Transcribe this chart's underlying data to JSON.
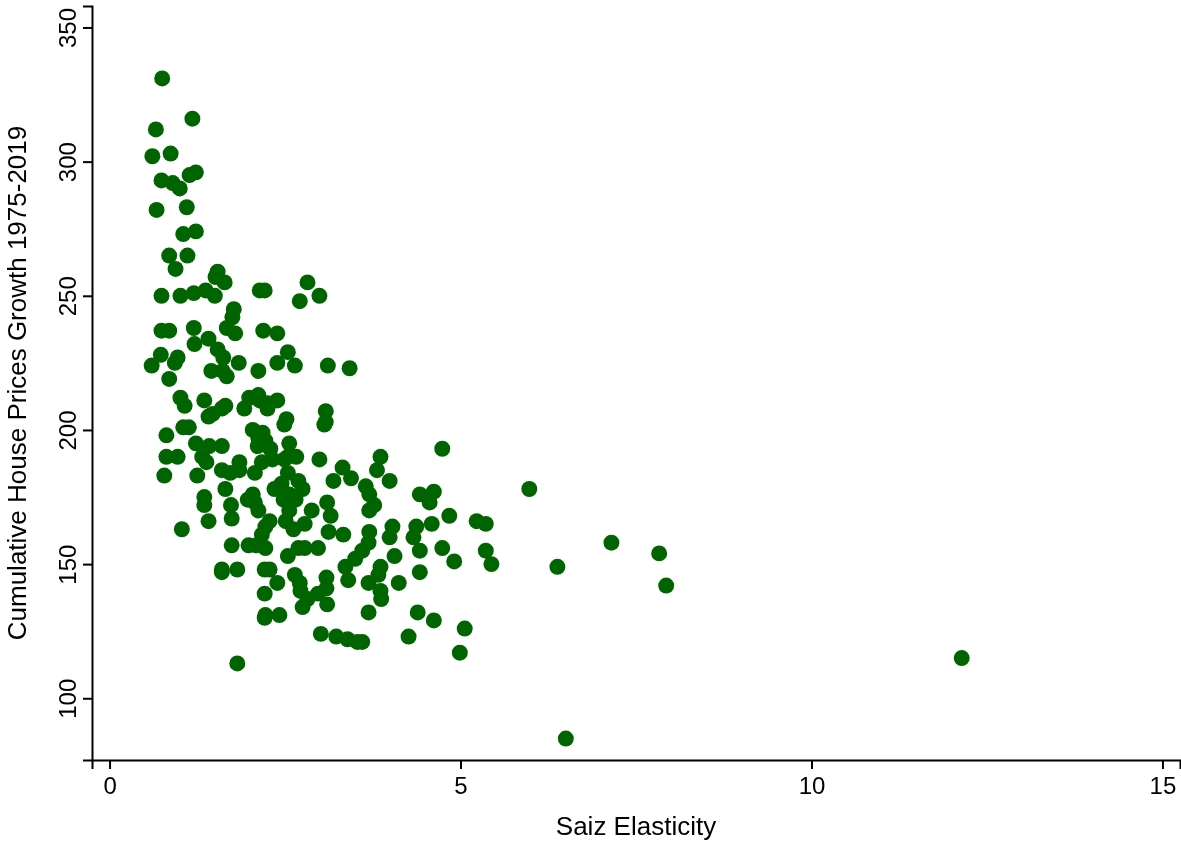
{
  "chart_data": {
    "type": "scatter",
    "xlabel": "Saiz Elasticity",
    "ylabel": "Cumulative House Prices Growth 1975-2019",
    "xlim": [
      -0.25,
      15.25
    ],
    "ylim": [
      77,
      358
    ],
    "xticks": [
      0,
      5,
      10,
      15
    ],
    "yticks": [
      100,
      150,
      200,
      250,
      300,
      350
    ],
    "grid": false,
    "marker": "circle",
    "series": [
      {
        "color": "#006400",
        "x": [
          0.75,
          0.66,
          1.18,
          0.61,
          0.87,
          0.74,
          0.9,
          1.0,
          1.14,
          1.23,
          0.67,
          1.1,
          1.05,
          1.23,
          0.85,
          1.11,
          0.94,
          0.74,
          1.01,
          1.2,
          1.37,
          1.54,
          1.51,
          1.64,
          1.5,
          0.74,
          0.85,
          1.2,
          1.41,
          1.67,
          1.75,
          1.77,
          0.73,
          0.97,
          1.21,
          1.54,
          1.62,
          0.6,
          0.93,
          1.45,
          1.61,
          1.84,
          0.85,
          1.67,
          2.14,
          2.21,
          1.79,
          2.19,
          2.39,
          2.12,
          2.39,
          2.64,
          2.54,
          2.71,
          2.82,
          2.99,
          3.11,
          3.42,
          2.39,
          2.52,
          3.08,
          3.06,
          3.08,
          1.01,
          1.07,
          1.13,
          1.05,
          0.81,
          0.97,
          0.81,
          0.78,
          1.03,
          1.23,
          1.25,
          1.32,
          1.38,
          1.42,
          1.35,
          1.41,
          1.47,
          1.6,
          1.65,
          1.35,
          1.35,
          1.41,
          1.6,
          1.6,
          1.6,
          1.6,
          1.82,
          1.82,
          1.65,
          1.72,
          1.73,
          1.74,
          1.85,
          1.85,
          1.74,
          1.98,
          2.09,
          1.92,
          1.99,
          2.12,
          2.14,
          2.25,
          2.25,
          2.04,
          2.12,
          2.18,
          2.22,
          2.11,
          2.29,
          2.32,
          2.17,
          2.07,
          2.04,
          1.97,
          2.07,
          2.12,
          2.22,
          2.22,
          2.21,
          2.28,
          2.21,
          2.22,
          2.21,
          2.42,
          2.39,
          2.45,
          2.54,
          2.49,
          2.56,
          2.54,
          2.49,
          2.66,
          2.69,
          2.75,
          2.65,
          2.56,
          2.51,
          2.62,
          2.78,
          2.54,
          2.69,
          2.78,
          2.64,
          2.71,
          2.72,
          2.75,
          2.82,
          2.97,
          2.88,
          2.97,
          2.99,
          3.01,
          3.23,
          3.09,
          3.09,
          3.1,
          3.12,
          3.15,
          3.1,
          3.19,
          3.32,
          3.44,
          3.33,
          3.36,
          3.4,
          3.39,
          3.53,
          3.6,
          3.5,
          3.6,
          3.69,
          3.7,
          3.65,
          3.7,
          3.7,
          3.81,
          3.86,
          3.77,
          3.86,
          3.83,
          3.69,
          3.86,
          3.87,
          3.69,
          3.99,
          4.03,
          3.99,
          4.06,
          4.12,
          4.26,
          4.33,
          4.37,
          4.42,
          4.42,
          4.42,
          4.39,
          4.56,
          4.59,
          4.62,
          4.62,
          4.74,
          4.74,
          4.84,
          4.91,
          4.99,
          5.06,
          5.23,
          5.36,
          5.36,
          5.44,
          5.98,
          6.38,
          6.5,
          7.15,
          7.83,
          7.93,
          12.14,
          2.35,
          2.48,
          2.56,
          2.28,
          2.17
        ],
        "values": [
          331,
          312,
          316,
          302,
          303,
          293,
          292,
          290,
          295,
          296,
          282,
          283,
          273,
          274,
          265,
          265,
          260,
          250,
          250,
          251,
          252,
          259,
          257,
          255,
          250,
          237,
          237,
          238,
          234,
          238,
          242,
          245,
          228,
          227,
          232,
          230,
          227,
          224,
          225,
          222,
          222,
          225,
          219,
          220,
          252,
          252,
          236,
          237,
          236,
          222,
          225,
          224,
          229,
          248,
          255,
          250,
          224,
          223,
          211,
          204,
          207,
          202,
          203,
          212,
          209,
          201,
          201,
          198,
          190,
          190,
          183,
          163,
          195,
          183,
          190,
          188,
          194,
          211,
          205,
          206,
          208,
          209,
          175,
          172,
          166,
          194,
          185,
          148,
          147,
          148,
          113,
          178,
          184,
          172,
          167,
          188,
          185,
          157,
          157,
          157,
          208,
          212,
          213,
          211,
          210,
          208,
          200,
          197,
          199,
          196,
          194,
          193,
          189,
          188,
          184,
          176,
          174,
          173,
          170,
          164,
          156,
          148,
          148,
          139,
          131,
          130,
          131,
          143,
          180,
          184,
          189,
          195,
          190,
          202,
          190,
          181,
          178,
          174,
          170,
          166,
          163,
          165,
          153,
          156,
          156,
          146,
          143,
          140,
          134,
          137,
          139,
          170,
          156,
          189,
          124,
          123,
          141,
          145,
          135,
          162,
          168,
          173,
          181,
          186,
          182,
          161,
          149,
          144,
          122,
          121,
          121,
          152,
          155,
          158,
          162,
          179,
          176,
          170,
          185,
          190,
          172,
          149,
          146,
          143,
          140,
          137,
          132,
          181,
          164,
          160,
          153,
          143,
          123,
          160,
          164,
          176,
          147,
          155,
          132,
          173,
          165,
          177,
          129,
          193,
          156,
          168,
          151,
          117,
          126,
          166,
          165,
          155,
          150,
          178,
          149,
          85,
          158,
          154,
          142,
          115,
          178,
          174,
          176,
          166,
          161
        ]
      }
    ]
  }
}
